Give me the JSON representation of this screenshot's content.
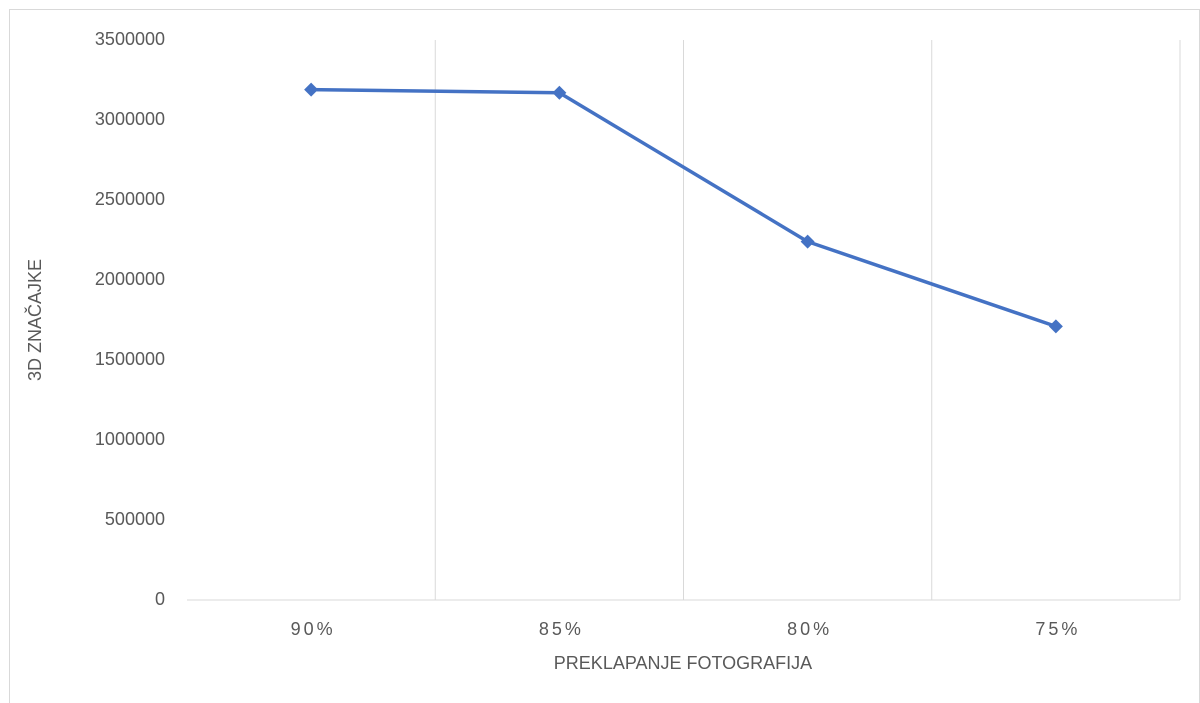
{
  "chart_data": {
    "type": "line",
    "x_label": "PREKLAPANJE FOTOGRAFIJA",
    "y_label": "3D ZNAČAJKE",
    "categories": [
      "90%",
      "85%",
      "80%",
      "75%"
    ],
    "values": [
      3190000,
      3170000,
      2240000,
      1710000
    ],
    "color": "#4472c4",
    "ylim": [
      0,
      3500000
    ],
    "yticks": [
      0,
      500000,
      1000000,
      1500000,
      2000000,
      2500000,
      3000000,
      3500000
    ],
    "grid": "x-bands"
  }
}
